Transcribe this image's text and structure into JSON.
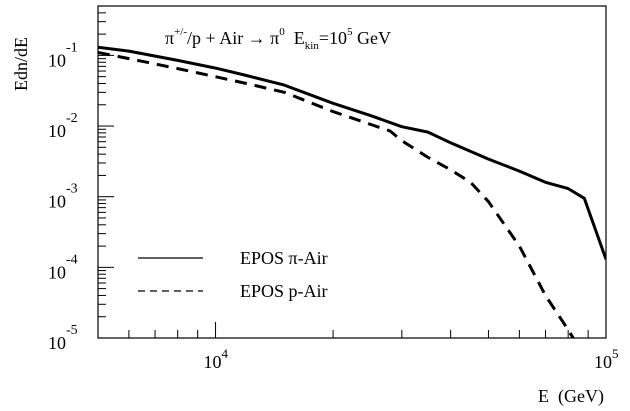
{
  "chart_data": {
    "type": "line",
    "title": {
      "a": "π",
      "a_sup": "+/-",
      "b": "/p + Air → π",
      "b_sup": "0",
      "c": "  E",
      "c_sub": "kin",
      "d": "=10",
      "d_sup": "5",
      "e": " GeV"
    },
    "xlabel": "E  (GeV)",
    "ylabel": "Edn/dE",
    "x_scale": "log",
    "y_scale": "log",
    "xlim": [
      5000,
      100000
    ],
    "ylim": [
      1e-05,
      0.5
    ],
    "x_ticks": [
      {
        "value": 10000,
        "base": "10",
        "exp": "4"
      },
      {
        "value": 100000,
        "base": "10",
        "exp": "5"
      }
    ],
    "y_ticks": [
      {
        "value": 0.1,
        "base": "10",
        "exp": "-1"
      },
      {
        "value": 0.01,
        "base": "10",
        "exp": "-2"
      },
      {
        "value": 0.001,
        "base": "10",
        "exp": "-3"
      },
      {
        "value": 0.0001,
        "base": "10",
        "exp": "-4"
      },
      {
        "value": 1e-05,
        "base": "10",
        "exp": "-5"
      }
    ],
    "legend_position": "bottom-left",
    "series": [
      {
        "name": "EPOS π-Air",
        "style": "solid",
        "color": "#000000",
        "x": [
          5000,
          6000,
          8000,
          10000,
          12000,
          15000,
          20000,
          25000,
          30000,
          35000,
          40000,
          50000,
          60000,
          70000,
          80000,
          88000,
          100000
        ],
        "y": [
          0.13,
          0.115,
          0.085,
          0.066,
          0.052,
          0.038,
          0.021,
          0.014,
          0.0098,
          0.0082,
          0.0058,
          0.0034,
          0.0023,
          0.0016,
          0.0013,
          0.00095,
          0.00013
        ]
      },
      {
        "name": "EPOS p-Air",
        "style": "dashed",
        "color": "#000000",
        "x": [
          5000,
          6000,
          8000,
          10000,
          12000,
          15000,
          20000,
          25000,
          28000,
          30000,
          35000,
          40000,
          45000,
          50000,
          60000,
          70000,
          80000,
          88000
        ],
        "y": [
          0.11,
          0.09,
          0.065,
          0.05,
          0.04,
          0.03,
          0.016,
          0.0105,
          0.0085,
          0.0062,
          0.0036,
          0.0024,
          0.0016,
          0.00085,
          0.0002,
          4e-05,
          1.3e-05,
          5.5e-06
        ]
      }
    ]
  }
}
